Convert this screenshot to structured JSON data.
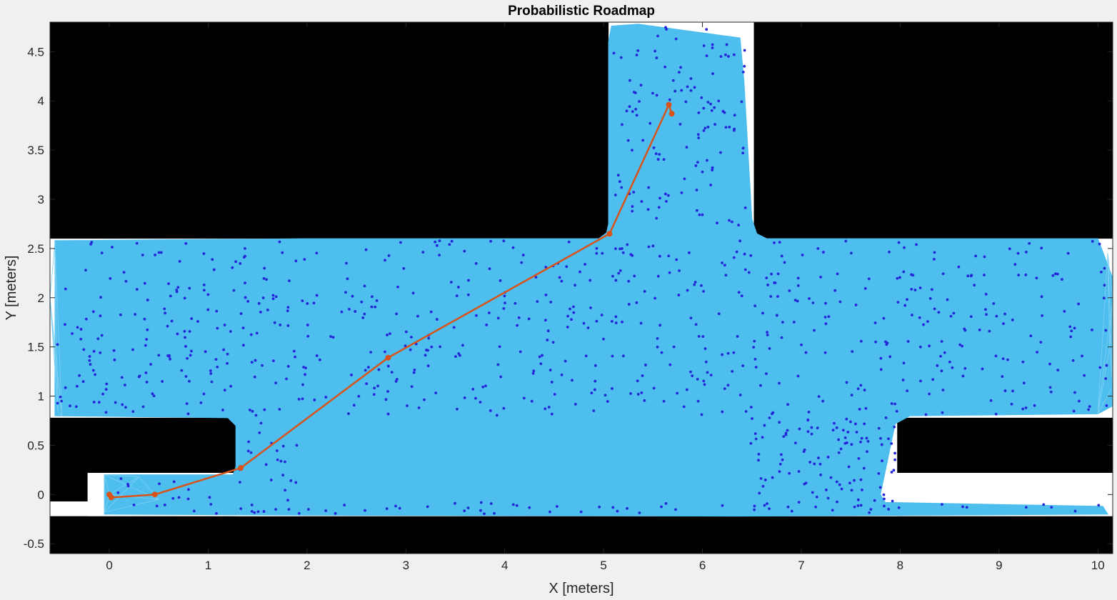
{
  "chart_data": {
    "type": "scatter",
    "title": "Probabilistic Roadmap",
    "xlabel": "X [meters]",
    "ylabel": "Y [meters]",
    "xlim": [
      -0.6,
      10.15
    ],
    "ylim": [
      -0.6,
      4.8
    ],
    "xticks": [
      0,
      1,
      2,
      3,
      4,
      5,
      6,
      7,
      8,
      9,
      10
    ],
    "yticks": [
      -0.5,
      0,
      0.5,
      1,
      1.5,
      2,
      2.5,
      3,
      3.5,
      4,
      4.5
    ],
    "background": "occupancy map (black = occupied, white = free)",
    "free_space_regions_xy": [
      {
        "xmin": -0.6,
        "xmax": 10.15,
        "ymin": 0.78,
        "ymax": 2.6
      },
      {
        "xmin": 5.05,
        "xmax": 6.52,
        "ymin": 2.6,
        "ymax": 4.8
      },
      {
        "xmin": -0.22,
        "xmax": 10.15,
        "ymin": -0.22,
        "ymax": 0.22
      },
      {
        "xmin": -0.6,
        "xmax": 10.15,
        "ymin": -0.22,
        "ymax": -0.07
      },
      {
        "xmin": 1.28,
        "xmax": 1.92,
        "ymin": -0.22,
        "ymax": 0.78
      },
      {
        "xmin": 6.45,
        "xmax": 7.97,
        "ymin": -0.22,
        "ymax": 0.78
      }
    ],
    "roadmap_color": "#4dbeee",
    "node_color": "#2626d9",
    "node_count_estimate": 1000,
    "path": {
      "color": "#d95319",
      "points": [
        [
          0.0,
          0.0
        ],
        [
          0.02,
          -0.03
        ],
        [
          0.46,
          0.0
        ],
        [
          1.33,
          0.27
        ],
        [
          2.82,
          1.39
        ],
        [
          5.06,
          2.65
        ],
        [
          5.66,
          3.96
        ],
        [
          5.69,
          3.87
        ]
      ]
    },
    "grid": false,
    "legend": "none"
  },
  "colors": {
    "figure_bg": "#f0f0f0",
    "occupied": "#000000",
    "free": "#ffffff",
    "roadmap": "#4dbeee",
    "nodes": "#2626d9",
    "path": "#d95319"
  }
}
